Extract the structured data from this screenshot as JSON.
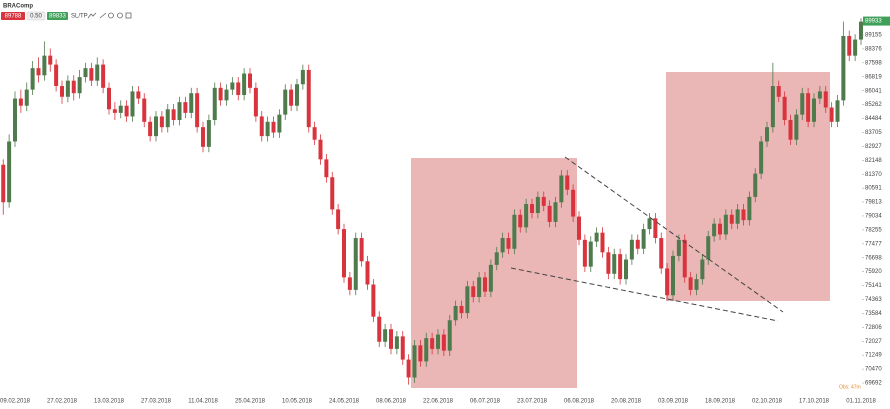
{
  "toolbar": {
    "symbol": "BRAComp",
    "sell": 89788,
    "lot": "0.50",
    "buy": 89833,
    "sltp": "SL/TP"
  },
  "chart_data": {
    "type": "candlestick",
    "up_color": "#4e7a4c",
    "down_color": "#d9343d",
    "annotation": "Obs: 47m",
    "last_price": 89933,
    "last_price_color": "#3fa05a",
    "categories": [
      null,
      null,
      "09.02.2018",
      null,
      null,
      null,
      null,
      null,
      null,
      null,
      "27.02.2018",
      null,
      null,
      null,
      null,
      null,
      null,
      null,
      "13.03.2018",
      null,
      null,
      null,
      null,
      null,
      null,
      null,
      "27.03.2018",
      null,
      null,
      null,
      null,
      null,
      null,
      null,
      "11.04.2018",
      null,
      null,
      null,
      null,
      null,
      null,
      null,
      "25.04.2018",
      null,
      null,
      null,
      null,
      null,
      null,
      null,
      "10.05.2018",
      null,
      null,
      null,
      null,
      null,
      null,
      null,
      "24.05.2018",
      null,
      null,
      null,
      null,
      null,
      null,
      null,
      "08.06.2018",
      null,
      null,
      null,
      null,
      null,
      null,
      null,
      "22.06.2018",
      null,
      null,
      null,
      null,
      null,
      null,
      null,
      "06.07.2018",
      null,
      null,
      null,
      null,
      null,
      null,
      null,
      "23.07.2018",
      null,
      null,
      null,
      null,
      null,
      null,
      null,
      "06.08.2018",
      null,
      null,
      null,
      null,
      null,
      null,
      null,
      "20.08.2018",
      null,
      null,
      null,
      null,
      null,
      null,
      null,
      "03.09.2018",
      null,
      null,
      null,
      null,
      null,
      null,
      null,
      "18.09.2018",
      null,
      null,
      null,
      null,
      null,
      null,
      null,
      "02.10.2018",
      null,
      null,
      null,
      null,
      null,
      null,
      null,
      "17.10.2018",
      null,
      null,
      null,
      null,
      null,
      null,
      null,
      "01.11.2018"
    ],
    "open": [
      81900,
      79800,
      83200,
      85600,
      85200,
      86100,
      87300,
      86900,
      88000,
      87500,
      86300,
      85700,
      86600,
      85900,
      86800,
      87300,
      86600,
      87500,
      86200,
      85000,
      84800,
      85200,
      84600,
      86000,
      85600,
      84300,
      83500,
      84600,
      84000,
      85000,
      84400,
      85400,
      84800,
      85900,
      84000,
      82900,
      84400,
      86200,
      85500,
      86100,
      86500,
      85800,
      87000,
      86200,
      84600,
      83500,
      84300,
      83700,
      84700,
      86100,
      85200,
      86400,
      87200,
      84000,
      83300,
      82200,
      81200,
      79400,
      78300,
      75600,
      74900,
      77800,
      76500,
      75200,
      73400,
      72000,
      72700,
      71600,
      72300,
      71000,
      70000,
      71800,
      70900,
      72200,
      71600,
      72400,
      71500,
      73200,
      74000,
      73600,
      75100,
      74500,
      75600,
      74800,
      76300,
      77000,
      77800,
      77200,
      79100,
      78400,
      79700,
      79200,
      80100,
      79600,
      78700,
      79800,
      81300,
      80500,
      79000,
      77700,
      76200,
      77600,
      78100,
      77000,
      75800,
      76900,
      75500,
      76600,
      77700,
      77200,
      78300,
      78900,
      77800,
      76100,
      74600,
      76800,
      77700,
      75600,
      74900,
      75500,
      76600,
      77900,
      78600,
      78000,
      79100,
      78600,
      79400,
      78800,
      80100,
      81400,
      83200,
      84000,
      86300,
      85700,
      84400,
      83300,
      84700,
      85900,
      84300,
      85600,
      86000,
      85100,
      84300,
      85500,
      89100,
      88000,
      88900
    ],
    "high": [
      82200,
      83600,
      86000,
      86100,
      86500,
      87700,
      87900,
      88800,
      88400,
      87800,
      86600,
      86900,
      86900,
      87200,
      87600,
      87600,
      87900,
      87800,
      86500,
      85400,
      85500,
      85500,
      86300,
      86300,
      85900,
      84600,
      84900,
      84900,
      85300,
      85300,
      85700,
      85700,
      86200,
      86200,
      84300,
      84700,
      86500,
      86500,
      86400,
      86800,
      86800,
      87300,
      87300,
      86500,
      84900,
      84600,
      84600,
      85000,
      86400,
      86400,
      86700,
      87500,
      87500,
      84300,
      83600,
      82500,
      81500,
      79700,
      78600,
      75900,
      78100,
      78100,
      76800,
      75500,
      73700,
      73000,
      73000,
      72600,
      72600,
      71300,
      72100,
      72100,
      72500,
      72500,
      72700,
      72700,
      73500,
      74300,
      74300,
      75400,
      75400,
      75900,
      75900,
      76600,
      77300,
      78100,
      78100,
      79400,
      79400,
      80000,
      80000,
      80400,
      80400,
      79900,
      80100,
      81600,
      81600,
      80800,
      79300,
      78000,
      77900,
      78400,
      78400,
      77300,
      77200,
      77200,
      76900,
      78000,
      78000,
      78600,
      79200,
      79200,
      78100,
      76400,
      77100,
      78000,
      78000,
      75900,
      75800,
      76900,
      78200,
      78900,
      78900,
      79400,
      79400,
      79700,
      79700,
      80400,
      81700,
      83500,
      84300,
      87600,
      86600,
      86000,
      84700,
      85000,
      86200,
      86200,
      85900,
      86300,
      86300,
      85400,
      85800,
      89900,
      89400,
      89200,
      90100
    ],
    "low": [
      79100,
      79500,
      82900,
      84800,
      84900,
      85800,
      86500,
      86600,
      87100,
      86000,
      85300,
      85400,
      85500,
      85600,
      86500,
      86300,
      86300,
      85900,
      84700,
      84400,
      84500,
      84300,
      84300,
      85300,
      84000,
      83200,
      83200,
      83700,
      83700,
      84100,
      84100,
      84500,
      84500,
      83700,
      82600,
      82600,
      84100,
      85200,
      85200,
      85800,
      85500,
      85500,
      85900,
      84300,
      83200,
      83200,
      83400,
      83400,
      84400,
      84900,
      84900,
      86100,
      83700,
      83000,
      81900,
      80900,
      79100,
      78000,
      75300,
      74600,
      74600,
      76200,
      74900,
      73100,
      71700,
      71700,
      71300,
      71300,
      70700,
      69600,
      69700,
      70600,
      70600,
      71300,
      71300,
      71200,
      71200,
      72900,
      73300,
      73300,
      74200,
      74200,
      74500,
      74500,
      76000,
      76700,
      76900,
      76900,
      78100,
      78100,
      78900,
      78900,
      79300,
      78400,
      78400,
      79500,
      80200,
      78700,
      77400,
      75900,
      75900,
      77300,
      76700,
      75500,
      75500,
      75200,
      75200,
      76300,
      76900,
      76900,
      78000,
      77500,
      75800,
      74300,
      74300,
      76500,
      75300,
      74600,
      74600,
      75200,
      76300,
      77600,
      77700,
      77700,
      78300,
      78300,
      78500,
      78500,
      79800,
      81100,
      82900,
      83700,
      85400,
      84100,
      83000,
      83000,
      84400,
      84000,
      84000,
      85300,
      84800,
      84000,
      84000,
      85200,
      87700,
      87700,
      88600
    ],
    "close": [
      79800,
      83200,
      85600,
      85200,
      86100,
      87300,
      86900,
      88000,
      87500,
      86300,
      85700,
      86600,
      85900,
      86800,
      87300,
      86600,
      87500,
      86200,
      85000,
      84800,
      85200,
      84600,
      86000,
      85600,
      84300,
      83500,
      84600,
      84000,
      85000,
      84400,
      85400,
      84800,
      85900,
      84000,
      82900,
      84400,
      86200,
      85500,
      86100,
      86500,
      85800,
      87000,
      86200,
      84600,
      83500,
      84300,
      83700,
      84700,
      86100,
      85200,
      86400,
      87200,
      84000,
      83300,
      82200,
      81200,
      79400,
      78300,
      75600,
      74900,
      77800,
      76500,
      75200,
      73400,
      72000,
      72700,
      71600,
      72300,
      71000,
      70000,
      71800,
      70900,
      72200,
      71600,
      72400,
      71500,
      73200,
      74000,
      73600,
      75100,
      74500,
      75600,
      74800,
      76300,
      77000,
      77800,
      77200,
      79100,
      78400,
      79700,
      79200,
      80100,
      79600,
      78700,
      79800,
      81300,
      80500,
      79000,
      77700,
      76200,
      77600,
      78100,
      77000,
      75800,
      76900,
      75500,
      76600,
      77700,
      77200,
      78300,
      78900,
      77800,
      76100,
      74600,
      76800,
      77700,
      75600,
      74900,
      75500,
      76600,
      77900,
      78600,
      78000,
      79100,
      78600,
      79400,
      78800,
      80100,
      81400,
      83200,
      84000,
      86300,
      85700,
      84400,
      83300,
      84700,
      85900,
      84300,
      85600,
      86000,
      85100,
      84300,
      85500,
      89100,
      88000,
      88900,
      89900
    ],
    "ylim": [
      69189,
      90441
    ],
    "yticks": [
      89155,
      88376,
      87598,
      86819,
      86041,
      85262,
      84484,
      83705,
      82927,
      82148,
      81370,
      80591,
      79813,
      79034,
      78255,
      77477,
      76698,
      75920,
      75141,
      74363,
      73584,
      72806,
      72027,
      71249,
      70470,
      69692
    ],
    "grid": false
  }
}
